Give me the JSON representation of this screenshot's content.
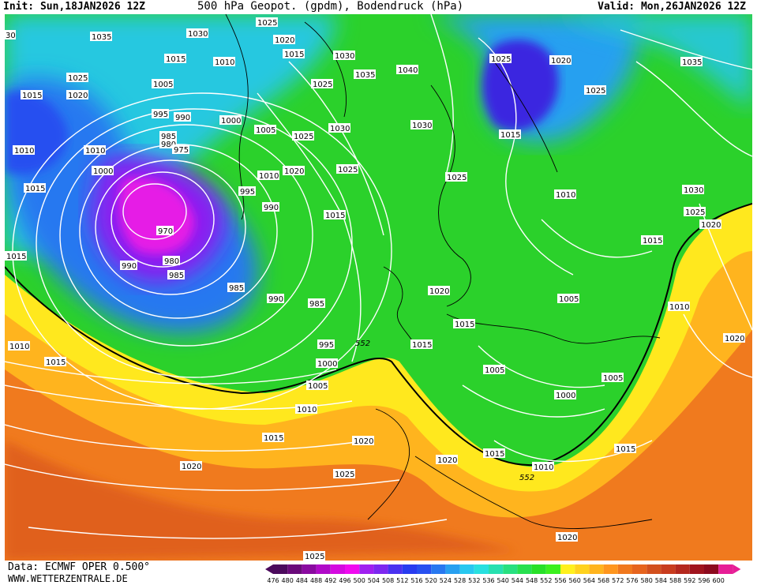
{
  "header": {
    "init": "Init: Sun,18JAN2026 12Z",
    "title": "500 hPa Geopot. (gpdm), Bodendruck (hPa)",
    "valid": "Valid: Mon,26JAN2026 12Z"
  },
  "footer": {
    "source": "Data: ECMWF OPER 0.500°",
    "website": "WWW.WETTERZENTRALE.DE"
  },
  "legend": {
    "levels": [
      "476",
      "480",
      "484",
      "488",
      "492",
      "496",
      "500",
      "504",
      "508",
      "512",
      "516",
      "520",
      "524",
      "528",
      "532",
      "536",
      "540",
      "544",
      "548",
      "552",
      "556",
      "560",
      "564",
      "568",
      "572",
      "576",
      "580",
      "584",
      "588",
      "592",
      "596",
      "600"
    ],
    "colors": [
      "#4b0a5c",
      "#6a0a7a",
      "#8a0aa0",
      "#b00ac8",
      "#d40ae0",
      "#f00af0",
      "#a020f0",
      "#7d28f0",
      "#4a32f0",
      "#283cf0",
      "#2850f0",
      "#2878f0",
      "#28a0f0",
      "#28c8f0",
      "#28e0e0",
      "#28e0b0",
      "#28e080",
      "#28e050",
      "#28e028",
      "#3cf01e",
      "#fff01e",
      "#ffd21e",
      "#ffb41e",
      "#ff961e",
      "#f0781e",
      "#e6641e",
      "#d2501e",
      "#c83c1e",
      "#b4281e",
      "#a0141e",
      "#8c0a1e",
      "#e61e96"
    ]
  },
  "isobar_labels": [
    {
      "text": "1035"
    },
    {
      "text": "1030"
    },
    {
      "text": "1025"
    },
    {
      "text": "1020"
    },
    {
      "text": "1015"
    },
    {
      "text": "1010"
    },
    {
      "text": "1005"
    },
    {
      "text": "1000"
    },
    {
      "text": "995"
    },
    {
      "text": "990"
    },
    {
      "text": "985"
    },
    {
      "text": "980"
    },
    {
      "text": "975"
    },
    {
      "text": "970"
    },
    {
      "text": "1040"
    },
    {
      "text": "552"
    },
    {
      "text": "30"
    }
  ]
}
